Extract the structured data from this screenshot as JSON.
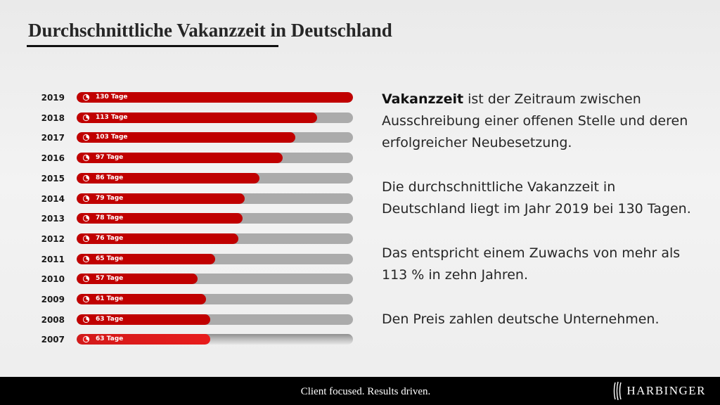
{
  "title": "Durchschnittliche Vakanzzeit in Deutschland",
  "chart_data": {
    "type": "bar",
    "orientation": "horizontal",
    "xlim": [
      0,
      130
    ],
    "unit": "Tage",
    "categories": [
      "2019",
      "2018",
      "2017",
      "2016",
      "2015",
      "2014",
      "2013",
      "2012",
      "2011",
      "2010",
      "2009",
      "2008",
      "2007"
    ],
    "values": [
      130,
      113,
      103,
      97,
      86,
      79,
      78,
      76,
      65,
      57,
      61,
      63,
      63
    ],
    "labels": [
      "130 Tage",
      "113 Tage",
      "103 Tage",
      "97 Tage",
      "86 Tage",
      "79 Tage",
      "78 Tage",
      "76 Tage",
      "65 Tage",
      "57 Tage",
      "61 Tage",
      "63 Tage",
      "63 Tage"
    ],
    "bar_color": "#c00000",
    "track_color": "#ababab",
    "highlight_color": "#e81c1c",
    "bar_icon": "clock-icon"
  },
  "text": {
    "p1_bold": "Vakanzzeit",
    "p1_rest": " ist der Zeitraum zwischen Ausschreibung einer offenen Stelle und deren erfolgreicher Neubesetzung.",
    "p2": "Die durchschnittliche Vakanzzeit in Deutschland liegt im Jahr 2019 bei 130 Tagen.",
    "p3": "Das entspricht einem Zuwachs von mehr als 113 % in zehn Jahren.",
    "p4": "Den Preis zahlen deutsche Unternehmen."
  },
  "footer": {
    "tagline": "Client focused. Results driven.",
    "brand": "HARBINGER",
    "brand_icon": "harbinger-logo-icon"
  }
}
